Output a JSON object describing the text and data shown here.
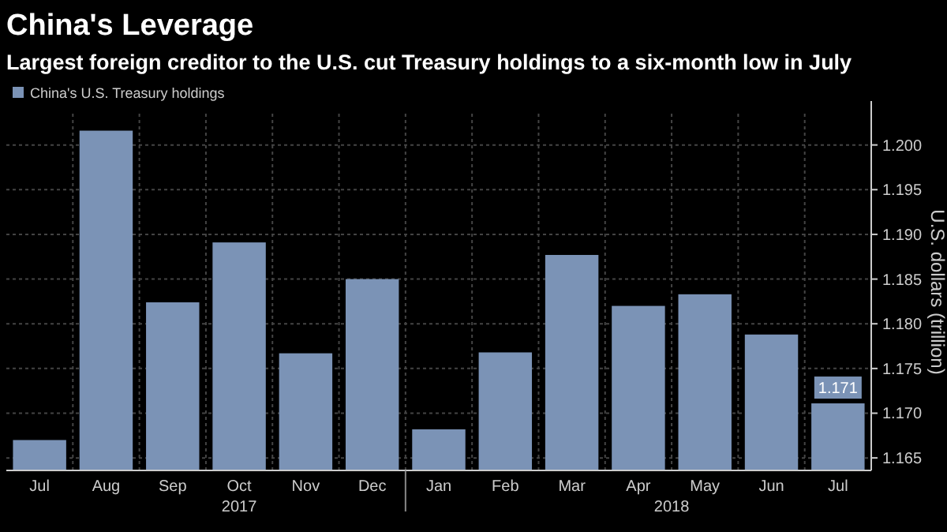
{
  "chart_data": {
    "type": "bar",
    "title": "China's Leverage",
    "subtitle": "Largest foreign creditor to the U.S. cut Treasury holdings to a six-month low in July",
    "ylabel": "U.S. dollars (trillion)",
    "categories": [
      "Jul",
      "Aug",
      "Sep",
      "Oct",
      "Nov",
      "Dec",
      "Jan",
      "Feb",
      "Mar",
      "Apr",
      "May",
      "Jun",
      "Jul"
    ],
    "series": [
      {
        "name": "China's U.S. Treasury holdings",
        "color": "#7b93b6",
        "values": [
          1.167,
          1.2016,
          1.1824,
          1.1891,
          1.1767,
          1.185,
          1.1682,
          1.1768,
          1.1877,
          1.182,
          1.1833,
          1.1788,
          1.1711
        ],
        "value_labels": [
          null,
          null,
          null,
          null,
          null,
          null,
          null,
          null,
          null,
          null,
          null,
          null,
          "1.171"
        ]
      }
    ],
    "annotations": [
      "2017",
      "2018"
    ],
    "ylim": [
      1.1636,
      1.2035
    ],
    "yticks": [
      1.165,
      {
        "value": 1.17,
        "label": "1.170"
      },
      1.175,
      {
        "value": 1.18,
        "label": "1.180"
      },
      1.185,
      {
        "value": 1.19,
        "label": "1.190"
      },
      1.195,
      {
        "value": 1.2,
        "label": "1.200"
      }
    ],
    "grid": true,
    "legend": "top left"
  }
}
